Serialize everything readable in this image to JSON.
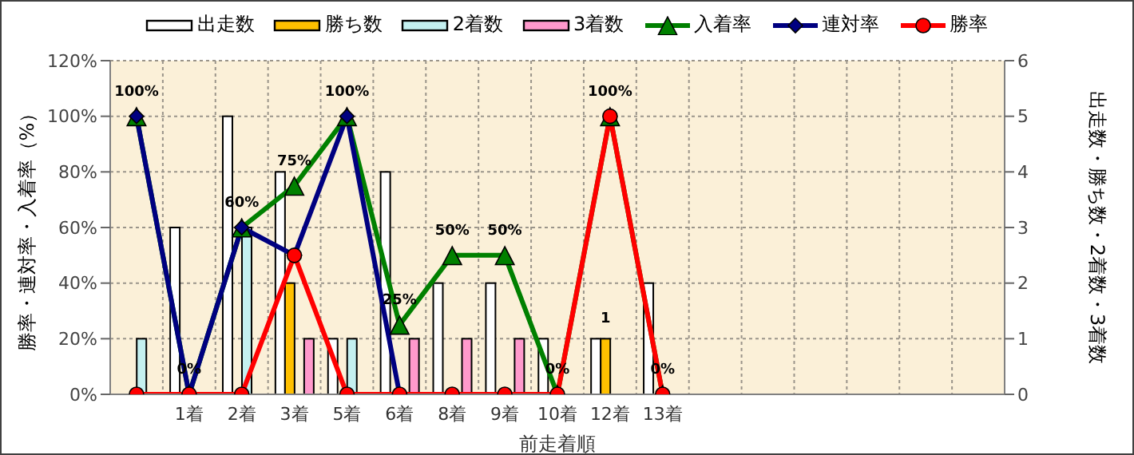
{
  "chart_data": {
    "type": "bar",
    "xlabel": "前走着順",
    "ylabel": "勝率・連対率・入着率（%）",
    "y2label": "出走数・勝ち数・2着数・3着数",
    "categories": [
      null,
      "1着",
      "2着",
      "3着",
      "5着",
      "6着",
      "8着",
      "9着",
      "10着",
      "12着",
      "13着",
      null,
      null,
      null,
      null,
      null,
      null
    ],
    "series": [
      {
        "name": "出走数",
        "axis": "y2",
        "color": "#ffffff",
        "values": [
          0,
          3,
          5,
          4,
          1,
          4,
          2,
          2,
          1,
          1,
          2,
          null,
          null,
          null,
          null,
          null,
          null
        ]
      },
      {
        "name": "勝ち数",
        "axis": "y2",
        "color": "#ffc000",
        "values": [
          0,
          0,
          0,
          2,
          0,
          0,
          0,
          0,
          0,
          1,
          0,
          null,
          null,
          null,
          null,
          null,
          null
        ],
        "value_labels": [
          null,
          null,
          null,
          null,
          null,
          null,
          null,
          null,
          null,
          "1",
          null,
          null,
          null,
          null,
          null,
          null,
          null
        ]
      },
      {
        "name": "2着数",
        "axis": "y2",
        "color": "#c4f0f0",
        "values": [
          1,
          0,
          3,
          0,
          1,
          0,
          0,
          0,
          0,
          0,
          0,
          null,
          null,
          null,
          null,
          null,
          null
        ]
      },
      {
        "name": "3着数",
        "axis": "y2",
        "color": "#ff99cc",
        "values": [
          0,
          0,
          0,
          1,
          0,
          1,
          1,
          1,
          0,
          0,
          0,
          null,
          null,
          null,
          null,
          null,
          null
        ]
      },
      {
        "name": "入着率",
        "type": "line",
        "axis": "y",
        "color": "#008000",
        "marker": "triangle",
        "values": [
          100,
          0,
          60,
          75,
          100,
          25,
          50,
          50,
          0,
          100,
          0,
          null,
          null,
          null,
          null,
          null,
          null
        ],
        "value_labels": [
          "100%",
          "0%",
          "60%",
          "75%",
          "100%",
          "25%",
          "50%",
          "50%",
          "0%",
          "100%",
          "0%",
          null,
          null,
          null,
          null,
          null,
          null
        ]
      },
      {
        "name": "連対率",
        "type": "line",
        "axis": "y",
        "color": "#000080",
        "marker": "diamond",
        "values": [
          100,
          0,
          60,
          50,
          100,
          0,
          null,
          null,
          null,
          null,
          null,
          null,
          null,
          null,
          null,
          null,
          null
        ]
      },
      {
        "name": "勝率",
        "type": "line",
        "axis": "y",
        "color": "#ff0000",
        "marker": "circle",
        "values": [
          0,
          0,
          0,
          50,
          0,
          0,
          0,
          0,
          0,
          100,
          0,
          null,
          null,
          null,
          null,
          null,
          null
        ]
      }
    ],
    "ylim": [
      0,
      120
    ],
    "yticks": [
      {
        "value": 0,
        "label": "0%"
      },
      {
        "value": 20,
        "label": "20%"
      },
      {
        "value": 40,
        "label": "40%"
      },
      {
        "value": 60,
        "label": "60%"
      },
      {
        "value": 80,
        "label": "80%"
      },
      {
        "value": 100,
        "label": "100%"
      },
      {
        "value": 120,
        "label": "120%"
      }
    ],
    "y2lim": [
      0,
      6
    ],
    "y2ticks": [
      0,
      1,
      2,
      3,
      4,
      5,
      6
    ],
    "grid": true,
    "legend": "top"
  }
}
